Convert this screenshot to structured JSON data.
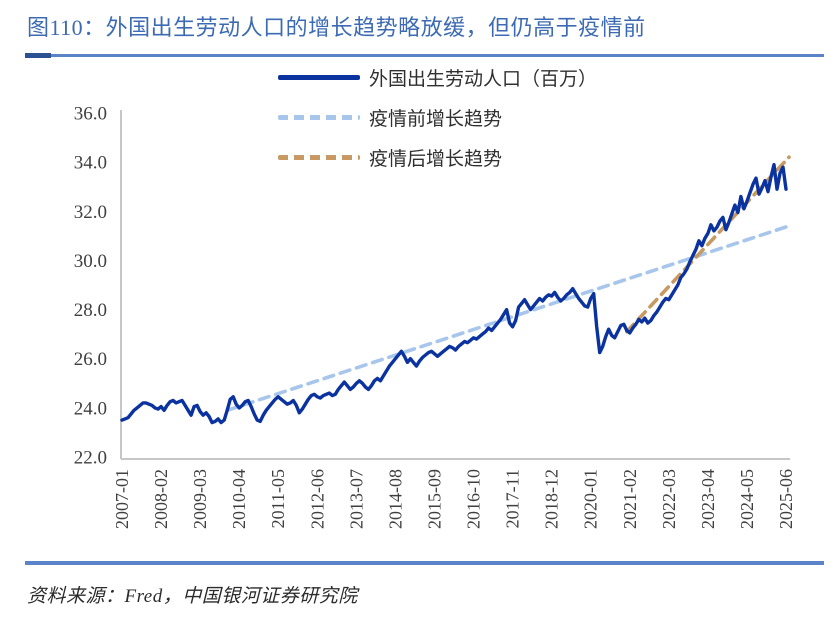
{
  "page": {
    "title": "图110：外国出生劳动人口的增长趋势略放缓，但仍高于疫情前",
    "source": "资料来源：Fred，中国银河证券研究院"
  },
  "colors": {
    "title_blue": "#3c6bb3",
    "rule_blue": "#5b84c8",
    "rule_cap_dark": "#2c5193",
    "axis_gray": "#c6c6c6",
    "tick_text": "#3f3f3f",
    "main_line": "#0b33a0",
    "pre_trend": "#a8c6ec",
    "post_trend": "#c69a62"
  },
  "chart_data": {
    "type": "line",
    "title": "外国出生劳动人口的增长趋势略放缓，但仍高于疫情前",
    "xlabel": "",
    "ylabel": "",
    "ylim": [
      22.0,
      36.0
    ],
    "grid": false,
    "legend_position": "top-center",
    "x_start_month": "2007-01",
    "x_end_month": "2025-06",
    "months_total": 222,
    "x_tick_step_months": 13,
    "x_tick_labels": [
      "2007-01",
      "2008-02",
      "2009-03",
      "2010-04",
      "2011-05",
      "2012-06",
      "2013-07",
      "2014-08",
      "2015-09",
      "2016-10",
      "2017-11",
      "2018-12",
      "2020-01",
      "2021-02",
      "2022-03",
      "2023-04",
      "2024-05",
      "2025-06"
    ],
    "y_ticks": [
      22,
      24,
      26,
      28,
      30,
      32,
      34,
      36
    ],
    "y_tick_labels": [
      "22.0",
      "24.0",
      "26.0",
      "28.0",
      "30.0",
      "32.0",
      "34.0",
      "36.0"
    ],
    "series": [
      {
        "name": "外国出生劳动人口（百万）",
        "style": "solid",
        "color": "#0b33a0",
        "monthly_values": [
          23.5,
          23.55,
          23.6,
          23.75,
          23.9,
          24.0,
          24.1,
          24.2,
          24.2,
          24.15,
          24.1,
          24.0,
          23.95,
          24.05,
          23.9,
          24.1,
          24.25,
          24.3,
          24.2,
          24.25,
          24.3,
          24.1,
          23.9,
          23.7,
          24.05,
          24.1,
          23.85,
          23.7,
          23.8,
          23.65,
          23.4,
          23.45,
          23.55,
          23.4,
          23.5,
          23.9,
          24.35,
          24.45,
          24.15,
          24.0,
          24.1,
          24.25,
          24.3,
          24.05,
          23.75,
          23.5,
          23.45,
          23.7,
          23.9,
          24.05,
          24.2,
          24.35,
          24.45,
          24.35,
          24.25,
          24.15,
          24.2,
          24.3,
          24.1,
          23.8,
          23.95,
          24.15,
          24.35,
          24.5,
          24.55,
          24.45,
          24.4,
          24.5,
          24.55,
          24.6,
          24.5,
          24.55,
          24.75,
          24.9,
          25.05,
          24.9,
          24.75,
          24.85,
          25.0,
          25.1,
          25.0,
          24.85,
          24.75,
          24.9,
          25.1,
          25.2,
          25.1,
          25.3,
          25.5,
          25.7,
          25.85,
          26.0,
          26.15,
          26.3,
          26.1,
          25.85,
          26.0,
          25.85,
          25.7,
          25.9,
          26.05,
          26.15,
          26.25,
          26.3,
          26.2,
          26.1,
          26.2,
          26.3,
          26.4,
          26.5,
          26.45,
          26.35,
          26.5,
          26.6,
          26.7,
          26.65,
          26.75,
          26.85,
          26.8,
          26.9,
          27.0,
          27.1,
          27.25,
          27.15,
          27.3,
          27.45,
          27.6,
          27.8,
          28.0,
          27.45,
          27.3,
          27.55,
          28.1,
          28.25,
          28.4,
          28.2,
          28.0,
          28.15,
          28.3,
          28.45,
          28.35,
          28.5,
          28.6,
          28.55,
          28.7,
          28.5,
          28.35,
          28.45,
          28.6,
          28.7,
          28.85,
          28.65,
          28.45,
          28.3,
          28.15,
          28.1,
          28.45,
          28.65,
          27.3,
          26.25,
          26.5,
          26.9,
          27.2,
          26.95,
          26.85,
          27.1,
          27.35,
          27.4,
          27.15,
          27.05,
          27.25,
          27.4,
          27.6,
          27.5,
          27.65,
          27.45,
          27.55,
          27.75,
          27.9,
          28.1,
          28.3,
          28.45,
          28.4,
          28.6,
          28.8,
          29.0,
          29.3,
          29.45,
          29.65,
          29.95,
          30.2,
          30.45,
          30.8,
          30.6,
          30.9,
          31.1,
          31.45,
          31.2,
          31.35,
          31.6,
          31.75,
          31.25,
          31.55,
          31.9,
          32.25,
          31.95,
          32.6,
          32.1,
          32.4,
          32.75,
          33.1,
          33.35,
          32.7,
          32.95,
          33.25,
          32.8,
          33.4,
          33.9,
          32.9,
          33.55,
          33.8,
          32.9
        ]
      },
      {
        "name": "疫情前增长趋势",
        "style": "dashed",
        "color": "#a8c6ec",
        "trend": {
          "start_month": "2009-12",
          "start_index": 35,
          "start_value": 23.9,
          "end_index": 222,
          "end_value": 31.4
        }
      },
      {
        "name": "疫情后增长趋势",
        "style": "dashed",
        "color": "#c69a62",
        "trend": {
          "start_month": "2021-01",
          "start_index": 168,
          "start_value": 27.1,
          "end_index": 222,
          "end_value": 34.2
        }
      }
    ]
  }
}
